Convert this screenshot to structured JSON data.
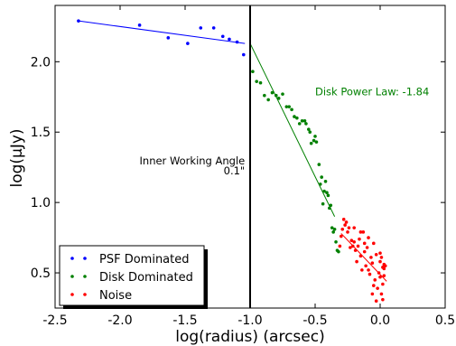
{
  "chart_data": {
    "type": "scatter",
    "xlabel": "log(radius) (arcsec)",
    "ylabel": "log(μJy)",
    "xlim": [
      -2.5,
      0.5
    ],
    "ylim": [
      0.25,
      2.4
    ],
    "x_ticks": [
      "-2.5",
      "-2.0",
      "-1.5",
      "-1.0",
      "-0.5",
      "0.0",
      "0.5"
    ],
    "x_tick_values": [
      -2.5,
      -2.0,
      -1.5,
      -1.0,
      -0.5,
      0.0,
      0.5
    ],
    "y_ticks": [
      "0.5",
      "1.0",
      "1.5",
      "2.0"
    ],
    "y_tick_values": [
      0.5,
      1.0,
      1.5,
      2.0
    ],
    "legend_position": "bottom-left",
    "series": [
      {
        "name": "PSF Dominated",
        "color": "#0000ff",
        "points": [
          [
            -2.32,
            2.29
          ],
          [
            -1.85,
            2.26
          ],
          [
            -1.63,
            2.17
          ],
          [
            -1.48,
            2.13
          ],
          [
            -1.38,
            2.24
          ],
          [
            -1.28,
            2.24
          ],
          [
            -1.21,
            2.18
          ],
          [
            -1.16,
            2.16
          ],
          [
            -1.1,
            2.14
          ],
          [
            -1.05,
            2.05
          ]
        ],
        "fit": [
          [
            -2.32,
            2.29
          ],
          [
            -1.04,
            2.13
          ]
        ]
      },
      {
        "name": "Disk Dominated",
        "color": "#008000",
        "points": [
          [
            -0.98,
            1.93
          ],
          [
            -0.95,
            1.86
          ],
          [
            -0.92,
            1.85
          ],
          [
            -0.89,
            1.76
          ],
          [
            -0.86,
            1.73
          ],
          [
            -0.83,
            1.78
          ],
          [
            -0.8,
            1.76
          ],
          [
            -0.78,
            1.74
          ],
          [
            -0.75,
            1.77
          ],
          [
            -0.72,
            1.68
          ],
          [
            -0.7,
            1.68
          ],
          [
            -0.68,
            1.66
          ],
          [
            -0.66,
            1.61
          ],
          [
            -0.64,
            1.6
          ],
          [
            -0.62,
            1.56
          ],
          [
            -0.6,
            1.58
          ],
          [
            -0.58,
            1.58
          ],
          [
            -0.57,
            1.56
          ],
          [
            -0.55,
            1.52
          ],
          [
            -0.54,
            1.5
          ],
          [
            -0.53,
            1.42
          ],
          [
            -0.51,
            1.44
          ],
          [
            -0.5,
            1.47
          ],
          [
            -0.49,
            1.43
          ],
          [
            -0.47,
            1.27
          ],
          [
            -0.46,
            1.13
          ],
          [
            -0.45,
            1.18
          ],
          [
            -0.44,
            0.99
          ],
          [
            -0.43,
            1.08
          ],
          [
            -0.42,
            1.15
          ],
          [
            -0.41,
            1.07
          ],
          [
            -0.4,
            1.05
          ],
          [
            -0.39,
            0.96
          ],
          [
            -0.38,
            0.98
          ],
          [
            -0.37,
            0.82
          ],
          [
            -0.36,
            0.79
          ],
          [
            -0.35,
            0.81
          ],
          [
            -0.34,
            0.72
          ],
          [
            -0.33,
            0.66
          ],
          [
            -0.32,
            0.65
          ]
        ],
        "fit": [
          [
            -1.0,
            2.13
          ],
          [
            -0.35,
            0.9
          ]
        ]
      },
      {
        "name": "Noise",
        "color": "#ff0000",
        "points": [
          [
            -0.31,
            0.69
          ],
          [
            -0.3,
            0.76
          ],
          [
            -0.29,
            0.81
          ],
          [
            -0.28,
            0.88
          ],
          [
            -0.27,
            0.84
          ],
          [
            -0.26,
            0.86
          ],
          [
            -0.25,
            0.79
          ],
          [
            -0.24,
            0.82
          ],
          [
            -0.23,
            0.68
          ],
          [
            -0.22,
            0.73
          ],
          [
            -0.21,
            0.69
          ],
          [
            -0.2,
            0.72
          ],
          [
            -0.19,
            0.66
          ],
          [
            -0.18,
            0.58
          ],
          [
            -0.17,
            0.69
          ],
          [
            -0.16,
            0.74
          ],
          [
            -0.15,
            0.62
          ],
          [
            -0.14,
            0.52
          ],
          [
            -0.13,
            0.79
          ],
          [
            -0.12,
            0.71
          ],
          [
            -0.11,
            0.55
          ],
          [
            -0.1,
            0.68
          ],
          [
            -0.09,
            0.75
          ],
          [
            -0.08,
            0.49
          ],
          [
            -0.07,
            0.61
          ],
          [
            -0.06,
            0.57
          ],
          [
            -0.05,
            0.71
          ],
          [
            -0.04,
            0.45
          ],
          [
            -0.03,
            0.63
          ],
          [
            -0.02,
            0.39
          ],
          [
            -0.01,
            0.5
          ],
          [
            0.0,
            0.58
          ],
          [
            0.0,
            0.47
          ],
          [
            0.01,
            0.35
          ],
          [
            0.01,
            0.61
          ],
          [
            0.02,
            0.42
          ],
          [
            0.02,
            0.54
          ],
          [
            0.03,
            0.56
          ],
          [
            0.03,
            0.48
          ],
          [
            0.04,
            0.55
          ],
          [
            -0.2,
            0.82
          ],
          [
            -0.15,
            0.79
          ],
          [
            -0.12,
            0.65
          ],
          [
            -0.06,
            0.35
          ],
          [
            -0.03,
            0.3
          ],
          [
            0.02,
            0.31
          ],
          [
            -0.09,
            0.52
          ],
          [
            -0.05,
            0.41
          ],
          [
            0.0,
            0.64
          ],
          [
            0.03,
            0.53
          ]
        ],
        "fit": [
          [
            -0.3,
            0.78
          ],
          [
            0.05,
            0.44
          ]
        ]
      }
    ],
    "vline": {
      "x": -1.0,
      "color": "#000000"
    },
    "annotations": [
      {
        "text": "Disk Power Law: -1.84",
        "x": -0.5,
        "y": 1.76,
        "color": "#008000",
        "align": "start"
      },
      {
        "text": "Inner Working Angle",
        "x": -1.04,
        "y": 1.27,
        "color": "#000000",
        "align": "end"
      },
      {
        "text": "0.1\"",
        "x": -1.04,
        "y": 1.2,
        "color": "#000000",
        "align": "end"
      }
    ]
  }
}
